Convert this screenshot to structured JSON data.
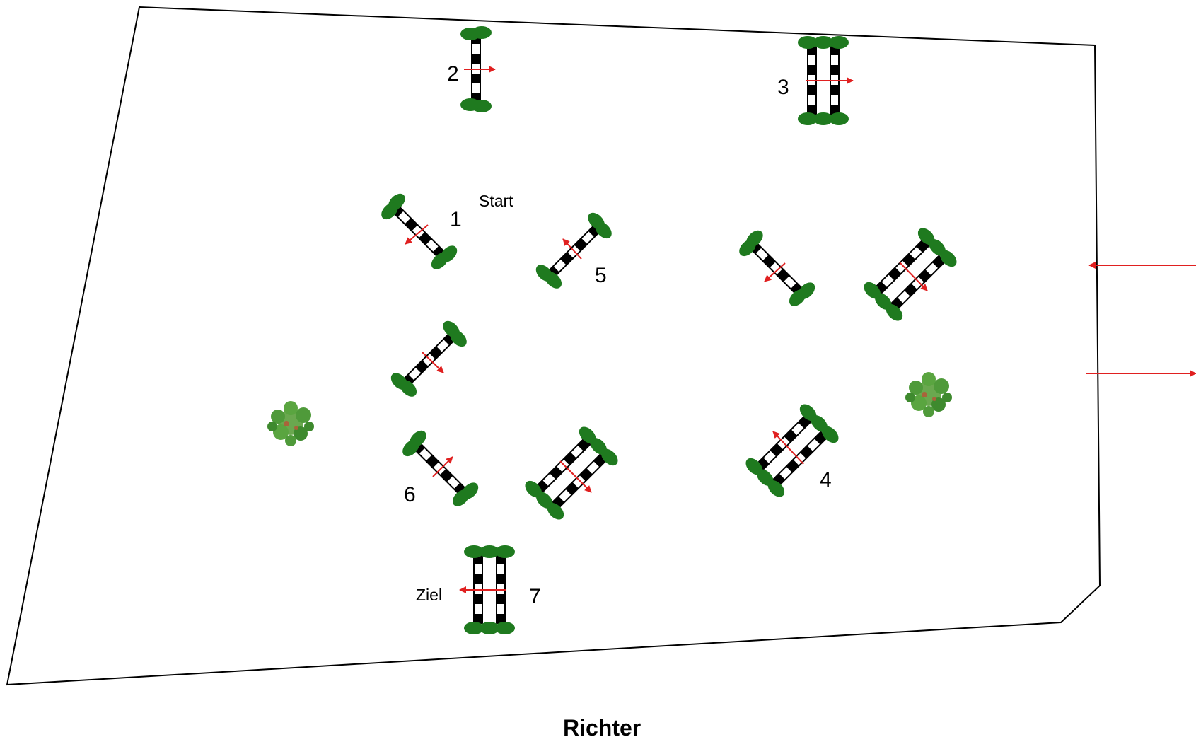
{
  "course": {
    "start_label": "Start",
    "finish_label": "Ziel",
    "judge_label": "Richter",
    "numbers": {
      "n1": "1",
      "n2": "2",
      "n3": "3",
      "n4": "4",
      "n5": "5",
      "n6": "6",
      "n7": "7"
    }
  },
  "colors": {
    "arena_border": "#000000",
    "pole_dark": "#000000",
    "pole_light": "#ffffff",
    "wing_green": "#1f7a1f",
    "direction_arrow": "#e02020",
    "bush_green": "#4f9a3a"
  },
  "icons": {
    "fence": "show-jump-fence-icon",
    "arrow": "direction-arrow-icon",
    "bush": "bush-icon"
  }
}
